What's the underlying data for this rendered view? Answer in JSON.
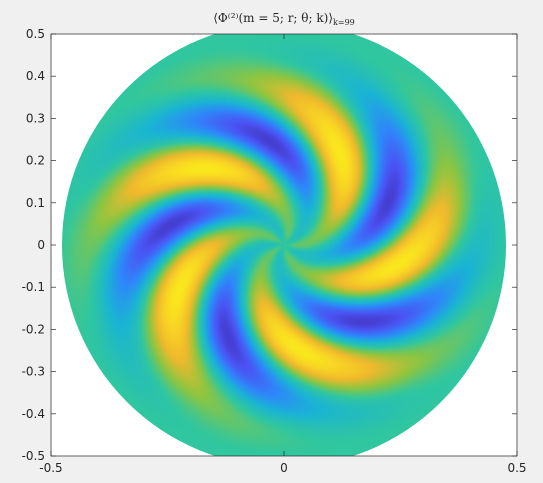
{
  "chart_data": {
    "type": "heatmap",
    "title": "⟨Φ⁽²⁾(m = 5; r; θ; k)⟩",
    "title_subscript": "k=99",
    "xlabel": "",
    "ylabel": "",
    "xlim": [
      -0.5,
      0.5
    ],
    "ylim": [
      -0.5,
      0.5
    ],
    "x_ticks": [
      -0.5,
      0,
      0.5
    ],
    "x_tick_labels": [
      "-0.5",
      "0",
      "0.5"
    ],
    "y_ticks": [
      -0.5,
      -0.4,
      -0.3,
      -0.2,
      -0.1,
      0,
      0.1,
      0.2,
      0.3,
      0.4,
      0.5
    ],
    "y_tick_labels": [
      "-0.5",
      "-0.4",
      "-0.3",
      "-0.2",
      "-0.1",
      "0",
      "0.1",
      "0.2",
      "0.3",
      "0.4",
      "0.5"
    ],
    "grid": false,
    "domain": "disk",
    "disk_radius": 0.5,
    "symmetry_order_m": 5,
    "colormap": [
      "#3e26a8",
      "#4b53f3",
      "#2f86fa",
      "#1ab4d4",
      "#2fc6a0",
      "#8cc541",
      "#efb92c",
      "#f9d723",
      "#f9fb15"
    ],
    "background_color": "#ffffff",
    "figure_color": "#f0f0f0"
  }
}
